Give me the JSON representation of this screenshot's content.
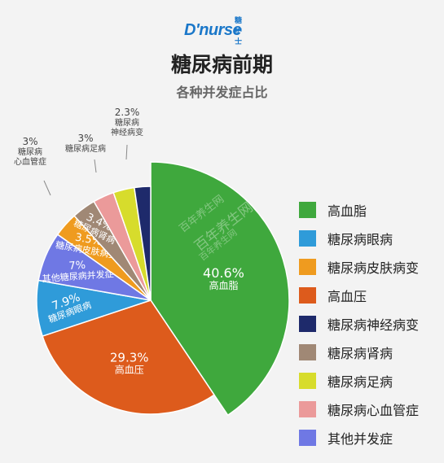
{
  "header": {
    "logo_text": "D'nurse",
    "logo_sub": "糖护士",
    "title": "糖尿病前期",
    "subtitle": "各种并发症占比"
  },
  "watermark": "百年养生网",
  "chart_data": {
    "type": "pie",
    "title": "糖尿病前期",
    "subtitle": "各种并发症占比",
    "legend_position": "right",
    "slices": [
      {
        "name": "高血脂",
        "value": 40.6,
        "label": "40.6%",
        "color": "#3fa83d"
      },
      {
        "name": "高血压",
        "value": 29.3,
        "label": "29.3%",
        "color": "#dd5b1c"
      },
      {
        "name": "糖尿病眼病",
        "value": 7.9,
        "label": "7.9%",
        "color": "#2f9bd9"
      },
      {
        "name": "其他并发症",
        "value": 7,
        "label": "7%",
        "color": "#6f78e4"
      },
      {
        "name": "糖尿病皮肤病变",
        "value": 3.5,
        "label": "3.5%",
        "color": "#ef9b1f"
      },
      {
        "name": "糖尿病肾病",
        "value": 3.4,
        "label": "3.4%",
        "color": "#a08875"
      },
      {
        "name": "糖尿病心血管症",
        "value": 3,
        "label": "3%",
        "color": "#eb9a9a"
      },
      {
        "name": "糖尿病足病",
        "value": 3,
        "label": "3%",
        "color": "#d7dc2c"
      },
      {
        "name": "糖尿病神经病变",
        "value": 2.3,
        "label": "2.3%",
        "color": "#1e2a6b"
      }
    ],
    "slice_label_lines": {
      "高血脂": [
        "40.6%",
        "高血脂"
      ],
      "高血压": [
        "29.3%",
        "高血压"
      ],
      "糖尿病眼病": [
        "7.9%",
        "糖尿病眼病"
      ],
      "其他并发症": [
        "7%",
        "其他糖尿病并发症"
      ],
      "糖尿病皮肤病变": [
        "3.5%",
        "糖尿病皮肤病变"
      ],
      "糖尿病肾病": [
        "3.4%",
        "糖尿病肾病"
      ],
      "糖尿病心血管症": [
        "3%",
        "糖尿病",
        "心血管症"
      ],
      "糖尿病足病": [
        "3%",
        "糖尿病足病"
      ],
      "糖尿病神经病变": [
        "2.3%",
        "糖尿病",
        "神经病变"
      ]
    },
    "legend": [
      "高血脂",
      "糖尿病眼病",
      "糖尿病皮肤病变",
      "高血压",
      "糖尿病神经病变",
      "糖尿病肾病",
      "糖尿病足病",
      "糖尿病心血管症",
      "其他并发症"
    ]
  }
}
